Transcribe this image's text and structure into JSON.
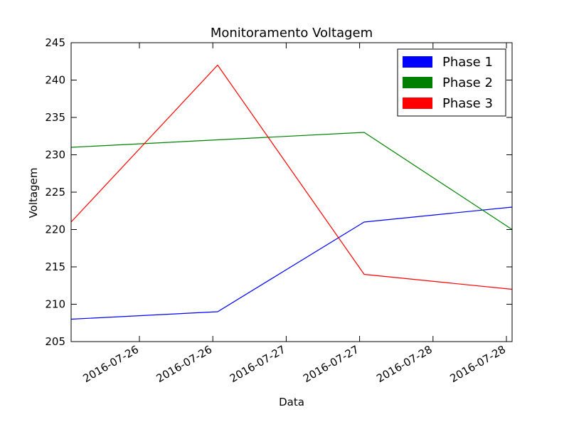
{
  "chart_data": {
    "type": "line",
    "title": "Monitoramento Voltagem",
    "xlabel": "Data",
    "ylabel": "Voltagem",
    "ylim": [
      205,
      245
    ],
    "yticks": [
      205,
      210,
      215,
      220,
      225,
      230,
      235,
      240,
      245
    ],
    "x": [
      "2016-07-26",
      "2016-07-26",
      "2016-07-27",
      "2016-07-28"
    ],
    "xticks": [
      "2016-07-26",
      "2016-07-26",
      "2016-07-27",
      "2016-07-27",
      "2016-07-28",
      "2016-07-28"
    ],
    "legend_position": "top-right",
    "grid": false,
    "series": [
      {
        "name": "Phase 1",
        "color": "#0000ff",
        "values": [
          208,
          209,
          221,
          223
        ]
      },
      {
        "name": "Phase 2",
        "color": "#008000",
        "values": [
          231,
          232,
          233,
          220
        ]
      },
      {
        "name": "Phase 3",
        "color": "#ff0000",
        "values": [
          221,
          242,
          214,
          212
        ]
      }
    ]
  }
}
